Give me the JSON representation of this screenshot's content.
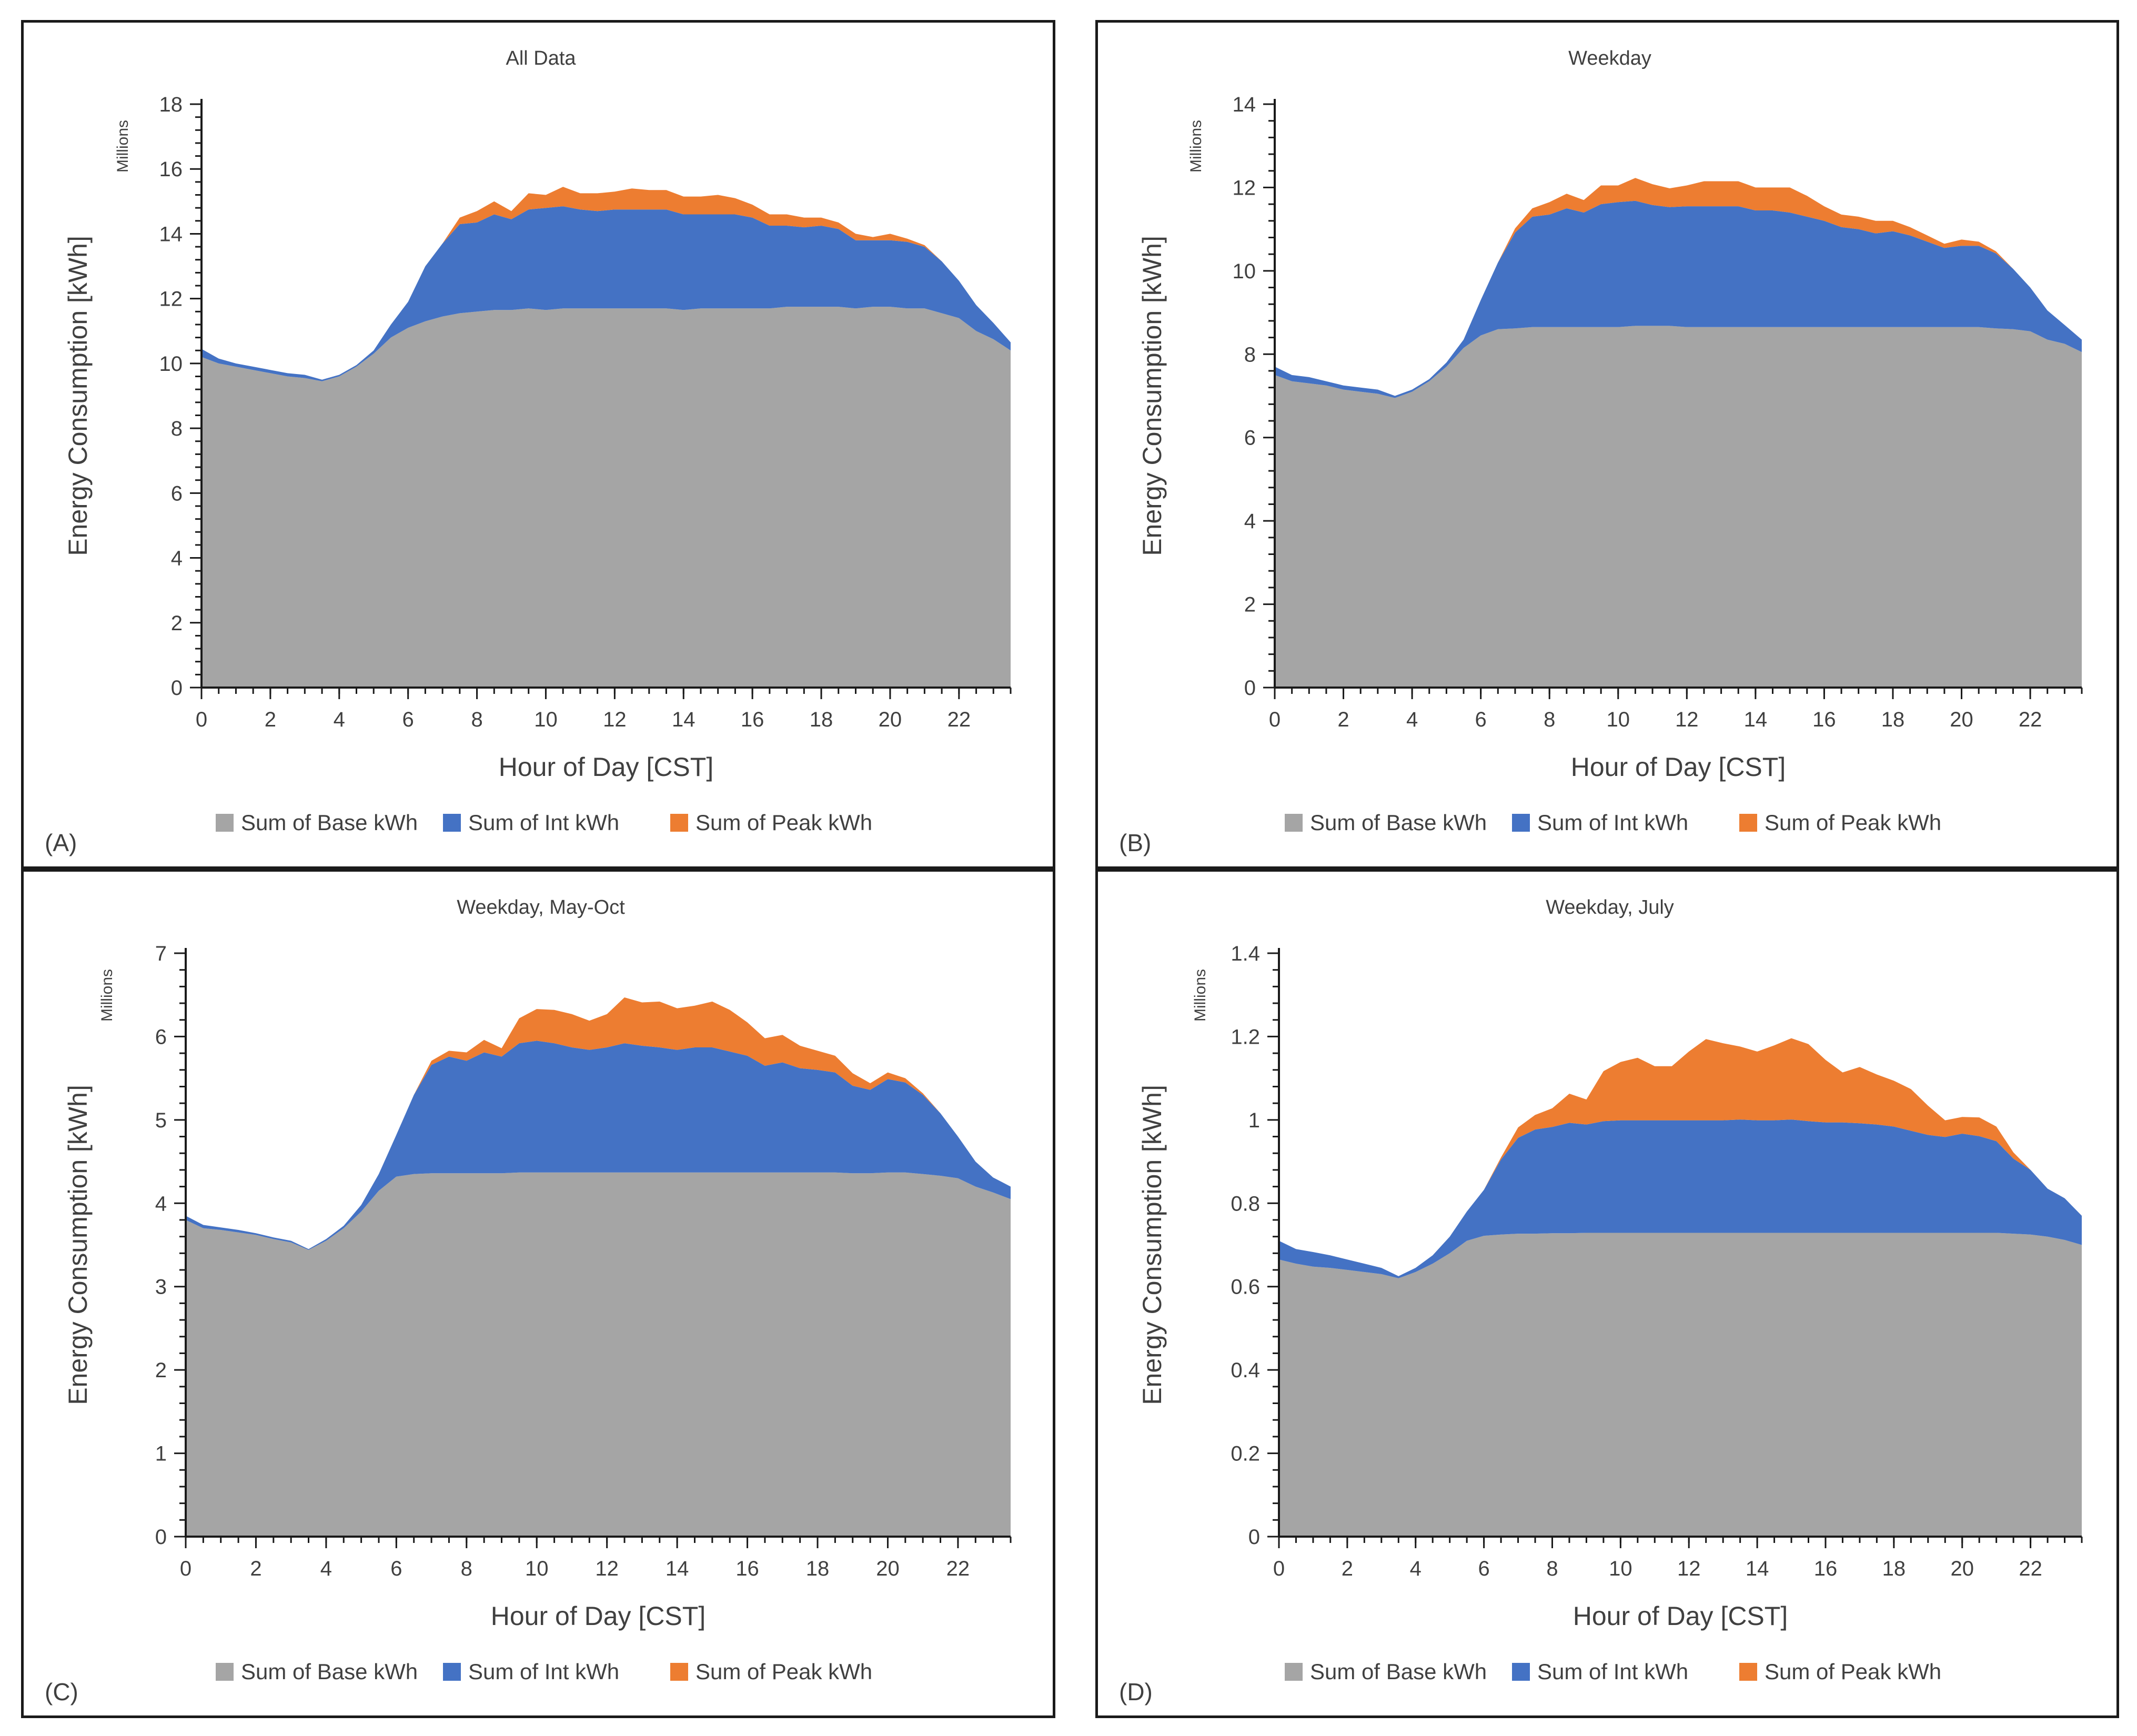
{
  "chart_data": [
    {
      "type": "area",
      "panel_tag": "(A)",
      "title": "All Data",
      "xlabel": "Hour of Day [CST]",
      "ylabel": "Energy Consumption  [kWh]",
      "units_label": "Millions",
      "ylim": [
        0,
        18
      ],
      "yticks": [
        0,
        2,
        4,
        6,
        8,
        10,
        12,
        14,
        16,
        18
      ],
      "ytick_labels": [
        "0",
        "2",
        "4",
        "6",
        "8",
        "10",
        "12",
        "14",
        "16",
        "18"
      ],
      "xlim": [
        0,
        23.5
      ],
      "xticks": [
        0,
        2,
        4,
        6,
        8,
        10,
        12,
        14,
        16,
        18,
        20,
        22
      ],
      "xtick_labels": [
        "0",
        "2",
        "4",
        "6",
        "8",
        "10",
        "12",
        "14",
        "16",
        "18",
        "20",
        "22"
      ],
      "x": [
        0,
        0.5,
        1,
        1.5,
        2,
        2.5,
        3,
        3.5,
        4,
        4.5,
        5,
        5.5,
        6,
        6.5,
        7,
        7.5,
        8,
        8.5,
        9,
        9.5,
        10,
        10.5,
        11,
        11.5,
        12,
        12.5,
        13,
        13.5,
        14,
        14.5,
        15,
        15.5,
        16,
        16.5,
        17,
        17.5,
        18,
        18.5,
        19,
        19.5,
        20,
        20.5,
        21,
        21.5,
        22,
        22.5,
        23,
        23.5
      ],
      "series": [
        {
          "name": "Sum of Base kWh",
          "color": "#a5a5a5",
          "values": [
            10.2,
            10.0,
            9.9,
            9.8,
            9.7,
            9.6,
            9.55,
            9.45,
            9.6,
            9.9,
            10.3,
            10.8,
            11.1,
            11.3,
            11.45,
            11.55,
            11.6,
            11.65,
            11.65,
            11.7,
            11.65,
            11.7,
            11.7,
            11.7,
            11.7,
            11.7,
            11.7,
            11.7,
            11.65,
            11.7,
            11.7,
            11.7,
            11.7,
            11.7,
            11.75,
            11.75,
            11.75,
            11.75,
            11.7,
            11.75,
            11.75,
            11.7,
            11.7,
            11.55,
            11.4,
            11.0,
            10.75,
            10.4
          ]
        },
        {
          "name": "Sum of Int kWh",
          "color": "#4472c4",
          "values": [
            0.25,
            0.15,
            0.1,
            0.1,
            0.1,
            0.1,
            0.1,
            0.05,
            0.05,
            0.05,
            0.1,
            0.4,
            0.8,
            1.7,
            2.25,
            2.75,
            2.75,
            2.95,
            2.8,
            3.05,
            3.15,
            3.15,
            3.05,
            3.0,
            3.05,
            3.05,
            3.05,
            3.05,
            2.95,
            2.9,
            2.9,
            2.9,
            2.8,
            2.55,
            2.5,
            2.45,
            2.5,
            2.4,
            2.1,
            2.05,
            2.05,
            2.05,
            1.9,
            1.6,
            1.15,
            0.8,
            0.5,
            0.25
          ]
        },
        {
          "name": "Sum of Peak kWh",
          "color": "#ed7d31",
          "values": [
            0,
            0,
            0,
            0,
            0,
            0,
            0,
            0,
            0,
            0,
            0,
            0,
            0,
            0,
            0,
            0.2,
            0.35,
            0.4,
            0.25,
            0.5,
            0.4,
            0.6,
            0.5,
            0.55,
            0.55,
            0.65,
            0.6,
            0.6,
            0.55,
            0.55,
            0.6,
            0.5,
            0.4,
            0.35,
            0.35,
            0.3,
            0.25,
            0.2,
            0.2,
            0.1,
            0.2,
            0.1,
            0.05,
            0,
            0,
            0,
            0,
            0
          ]
        }
      ],
      "legend_position": "bottom"
    },
    {
      "type": "area",
      "panel_tag": "(B)",
      "title": "Weekday",
      "xlabel": "Hour of Day [CST]",
      "ylabel": "Energy Consumption  [kWh]",
      "units_label": "Millions",
      "ylim": [
        0,
        14
      ],
      "yticks": [
        0,
        2,
        4,
        6,
        8,
        10,
        12,
        14
      ],
      "ytick_labels": [
        "0",
        "2",
        "4",
        "6",
        "8",
        "10",
        "12",
        "14"
      ],
      "xlim": [
        0,
        23.5
      ],
      "xticks": [
        0,
        2,
        4,
        6,
        8,
        10,
        12,
        14,
        16,
        18,
        20,
        22
      ],
      "xtick_labels": [
        "0",
        "2",
        "4",
        "6",
        "8",
        "10",
        "12",
        "14",
        "16",
        "18",
        "20",
        "22"
      ],
      "x": [
        0,
        0.5,
        1,
        1.5,
        2,
        2.5,
        3,
        3.5,
        4,
        4.5,
        5,
        5.5,
        6,
        6.5,
        7,
        7.5,
        8,
        8.5,
        9,
        9.5,
        10,
        10.5,
        11,
        11.5,
        12,
        12.5,
        13,
        13.5,
        14,
        14.5,
        15,
        15.5,
        16,
        16.5,
        17,
        17.5,
        18,
        18.5,
        19,
        19.5,
        20,
        20.5,
        21,
        21.5,
        22,
        22.5,
        23,
        23.5
      ],
      "series": [
        {
          "name": "Sum of Base kWh",
          "color": "#a5a5a5",
          "values": [
            7.5,
            7.35,
            7.3,
            7.25,
            7.15,
            7.1,
            7.05,
            6.95,
            7.1,
            7.35,
            7.7,
            8.15,
            8.45,
            8.6,
            8.62,
            8.65,
            8.65,
            8.65,
            8.65,
            8.65,
            8.65,
            8.68,
            8.68,
            8.68,
            8.65,
            8.65,
            8.65,
            8.65,
            8.65,
            8.65,
            8.65,
            8.65,
            8.65,
            8.65,
            8.65,
            8.65,
            8.65,
            8.65,
            8.65,
            8.65,
            8.65,
            8.65,
            8.62,
            8.6,
            8.55,
            8.35,
            8.25,
            8.05
          ]
        },
        {
          "name": "Sum of Int kWh",
          "color": "#4472c4",
          "values": [
            0.2,
            0.15,
            0.15,
            0.1,
            0.1,
            0.1,
            0.1,
            0.05,
            0.05,
            0.05,
            0.1,
            0.2,
            0.85,
            1.6,
            2.3,
            2.65,
            2.7,
            2.85,
            2.75,
            2.95,
            3.0,
            3.0,
            2.9,
            2.85,
            2.9,
            2.9,
            2.9,
            2.9,
            2.8,
            2.8,
            2.75,
            2.65,
            2.55,
            2.4,
            2.35,
            2.25,
            2.3,
            2.2,
            2.05,
            1.9,
            1.95,
            1.95,
            1.8,
            1.45,
            1.05,
            0.7,
            0.45,
            0.3
          ]
        },
        {
          "name": "Sum of Peak kWh",
          "color": "#ed7d31",
          "values": [
            0,
            0,
            0,
            0,
            0,
            0,
            0,
            0,
            0,
            0,
            0,
            0,
            0,
            0,
            0.1,
            0.2,
            0.3,
            0.35,
            0.3,
            0.45,
            0.4,
            0.55,
            0.5,
            0.45,
            0.5,
            0.6,
            0.6,
            0.6,
            0.55,
            0.55,
            0.6,
            0.5,
            0.35,
            0.3,
            0.3,
            0.3,
            0.25,
            0.2,
            0.15,
            0.1,
            0.15,
            0.1,
            0.05,
            0,
            0,
            0,
            0,
            0
          ]
        }
      ],
      "legend_position": "bottom"
    },
    {
      "type": "area",
      "panel_tag": "(C)",
      "title": "Weekday, May-Oct",
      "xlabel": "Hour of Day [CST]",
      "ylabel": "Energy Consumption  [kWh]",
      "units_label": "Millions",
      "ylim": [
        0,
        7
      ],
      "yticks": [
        0,
        1,
        2,
        3,
        4,
        5,
        6,
        7
      ],
      "ytick_labels": [
        "0",
        "1",
        "2",
        "3",
        "4",
        "5",
        "6",
        "7"
      ],
      "xlim": [
        0,
        23.5
      ],
      "xticks": [
        0,
        2,
        4,
        6,
        8,
        10,
        12,
        14,
        16,
        18,
        20,
        22
      ],
      "xtick_labels": [
        "0",
        "2",
        "4",
        "6",
        "8",
        "10",
        "12",
        "14",
        "16",
        "18",
        "20",
        "22"
      ],
      "x": [
        0,
        0.5,
        1,
        1.5,
        2,
        2.5,
        3,
        3.5,
        4,
        4.5,
        5,
        5.5,
        6,
        6.5,
        7,
        7.5,
        8,
        8.5,
        9,
        9.5,
        10,
        10.5,
        11,
        11.5,
        12,
        12.5,
        13,
        13.5,
        14,
        14.5,
        15,
        15.5,
        16,
        16.5,
        17,
        17.5,
        18,
        18.5,
        19,
        19.5,
        20,
        20.5,
        21,
        21.5,
        22,
        22.5,
        23,
        23.5
      ],
      "series": [
        {
          "name": "Sum of Base kWh",
          "color": "#a5a5a5",
          "values": [
            3.8,
            3.7,
            3.68,
            3.65,
            3.62,
            3.57,
            3.53,
            3.44,
            3.55,
            3.7,
            3.9,
            4.15,
            4.32,
            4.35,
            4.36,
            4.36,
            4.36,
            4.36,
            4.36,
            4.37,
            4.37,
            4.37,
            4.37,
            4.37,
            4.37,
            4.37,
            4.37,
            4.37,
            4.37,
            4.37,
            4.37,
            4.37,
            4.37,
            4.37,
            4.37,
            4.37,
            4.37,
            4.37,
            4.36,
            4.36,
            4.37,
            4.37,
            4.35,
            4.33,
            4.3,
            4.2,
            4.13,
            4.05
          ]
        },
        {
          "name": "Sum of Int kWh",
          "color": "#4472c4",
          "values": [
            0.05,
            0.04,
            0.03,
            0.03,
            0.02,
            0.02,
            0.02,
            0.01,
            0.02,
            0.03,
            0.08,
            0.2,
            0.5,
            0.95,
            1.3,
            1.4,
            1.35,
            1.45,
            1.4,
            1.55,
            1.58,
            1.55,
            1.5,
            1.47,
            1.5,
            1.55,
            1.52,
            1.5,
            1.47,
            1.5,
            1.5,
            1.45,
            1.4,
            1.28,
            1.32,
            1.25,
            1.23,
            1.2,
            1.05,
            1.0,
            1.12,
            1.08,
            0.95,
            0.75,
            0.5,
            0.3,
            0.18,
            0.15
          ]
        },
        {
          "name": "Sum of Peak kWh",
          "color": "#ed7d31",
          "values": [
            0,
            0,
            0,
            0,
            0,
            0,
            0,
            0,
            0,
            0,
            0,
            0,
            0,
            0,
            0.05,
            0.07,
            0.1,
            0.15,
            0.1,
            0.3,
            0.38,
            0.4,
            0.4,
            0.35,
            0.4,
            0.55,
            0.52,
            0.55,
            0.5,
            0.5,
            0.55,
            0.5,
            0.4,
            0.33,
            0.33,
            0.27,
            0.23,
            0.2,
            0.15,
            0.08,
            0.08,
            0.05,
            0.02,
            0,
            0,
            0,
            0,
            0
          ]
        }
      ],
      "legend_position": "bottom"
    },
    {
      "type": "area",
      "panel_tag": "(D)",
      "title": "Weekday, July",
      "xlabel": "Hour of Day [CST]",
      "ylabel": "Energy Consumption  [kWh]",
      "units_label": "Millions",
      "ylim": [
        0,
        1.4
      ],
      "yticks": [
        0,
        0.2,
        0.4,
        0.6,
        0.8,
        1.0,
        1.2,
        1.4
      ],
      "ytick_labels": [
        "0",
        "0.2",
        "0.4",
        "0.6",
        "0.8",
        "1",
        "1.2",
        "1.4"
      ],
      "xlim": [
        0,
        23.5
      ],
      "xticks": [
        0,
        2,
        4,
        6,
        8,
        10,
        12,
        14,
        16,
        18,
        20,
        22
      ],
      "xtick_labels": [
        "0",
        "2",
        "4",
        "6",
        "8",
        "10",
        "12",
        "14",
        "16",
        "18",
        "20",
        "22"
      ],
      "x": [
        0,
        0.5,
        1,
        1.5,
        2,
        2.5,
        3,
        3.5,
        4,
        4.5,
        5,
        5.5,
        6,
        6.5,
        7,
        7.5,
        8,
        8.5,
        9,
        9.5,
        10,
        10.5,
        11,
        11.5,
        12,
        12.5,
        13,
        13.5,
        14,
        14.5,
        15,
        15.5,
        16,
        16.5,
        17,
        17.5,
        18,
        18.5,
        19,
        19.5,
        20,
        20.5,
        21,
        21.5,
        22,
        22.5,
        23,
        23.5
      ],
      "series": [
        {
          "name": "Sum of Base kWh",
          "color": "#a5a5a5",
          "values": [
            0.665,
            0.655,
            0.648,
            0.645,
            0.64,
            0.635,
            0.63,
            0.62,
            0.635,
            0.655,
            0.68,
            0.71,
            0.722,
            0.725,
            0.727,
            0.727,
            0.728,
            0.728,
            0.729,
            0.729,
            0.729,
            0.729,
            0.729,
            0.729,
            0.729,
            0.729,
            0.729,
            0.729,
            0.729,
            0.729,
            0.729,
            0.729,
            0.729,
            0.729,
            0.729,
            0.729,
            0.729,
            0.729,
            0.729,
            0.729,
            0.729,
            0.729,
            0.729,
            0.727,
            0.725,
            0.72,
            0.712,
            0.7
          ]
        },
        {
          "name": "Sum of Int kWh",
          "color": "#4472c4",
          "values": [
            0.045,
            0.035,
            0.035,
            0.03,
            0.025,
            0.02,
            0.015,
            0.005,
            0.01,
            0.02,
            0.04,
            0.07,
            0.11,
            0.18,
            0.23,
            0.25,
            0.255,
            0.265,
            0.26,
            0.268,
            0.27,
            0.27,
            0.27,
            0.27,
            0.27,
            0.27,
            0.27,
            0.272,
            0.27,
            0.27,
            0.272,
            0.268,
            0.265,
            0.265,
            0.263,
            0.26,
            0.255,
            0.245,
            0.235,
            0.23,
            0.238,
            0.232,
            0.22,
            0.18,
            0.155,
            0.115,
            0.1,
            0.07
          ]
        },
        {
          "name": "Sum of Peak kWh",
          "color": "#ed7d31",
          "values": [
            0,
            0,
            0,
            0,
            0,
            0,
            0,
            0,
            0,
            0,
            0,
            0,
            0,
            0.005,
            0.025,
            0.035,
            0.045,
            0.07,
            0.06,
            0.12,
            0.14,
            0.15,
            0.13,
            0.13,
            0.165,
            0.195,
            0.185,
            0.175,
            0.165,
            0.18,
            0.195,
            0.185,
            0.15,
            0.12,
            0.135,
            0.12,
            0.11,
            0.1,
            0.07,
            0.04,
            0.04,
            0.045,
            0.035,
            0.015,
            0,
            0,
            0,
            0
          ]
        }
      ],
      "legend_position": "bottom"
    }
  ]
}
